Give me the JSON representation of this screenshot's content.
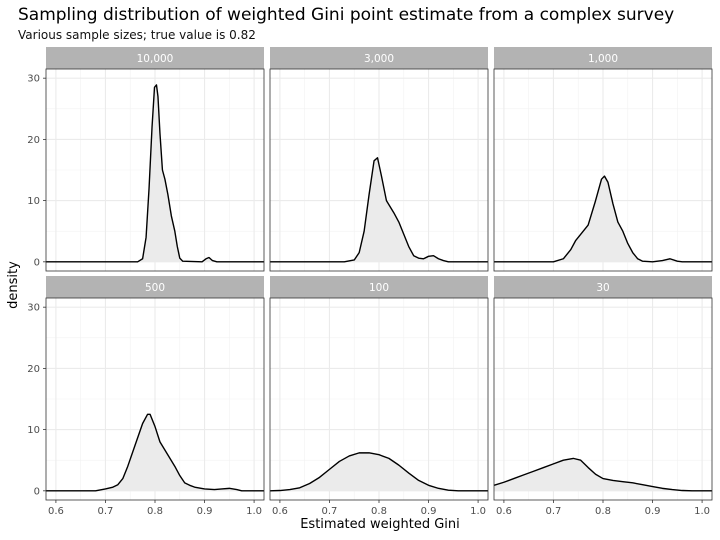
{
  "chart_data": {
    "type": "area",
    "title": "Sampling distribution of weighted Gini point estimate from a complex survey",
    "subtitle": "Various sample sizes; true value is 0.82",
    "xlabel": "Estimated weighted Gini",
    "ylabel": "density",
    "xlim": [
      0.58,
      1.02
    ],
    "ylim": [
      -1.5,
      31.5
    ],
    "x_ticks": [
      0.6,
      0.7,
      0.8,
      0.9,
      1.0
    ],
    "x_tick_labels": [
      "0.6",
      "0.7",
      "0.8",
      "0.9",
      "1.0"
    ],
    "y_ticks": [
      0,
      10,
      20,
      30
    ],
    "y_tick_labels": [
      "0",
      "10",
      "20",
      "30"
    ],
    "grid": true,
    "facets": [
      {
        "label": "10,000",
        "points": [
          [
            0.58,
            0
          ],
          [
            0.74,
            0
          ],
          [
            0.765,
            0
          ],
          [
            0.775,
            0.5
          ],
          [
            0.782,
            4
          ],
          [
            0.788,
            12
          ],
          [
            0.794,
            22
          ],
          [
            0.799,
            28.5
          ],
          [
            0.803,
            28.9
          ],
          [
            0.806,
            27
          ],
          [
            0.81,
            21
          ],
          [
            0.815,
            15
          ],
          [
            0.82,
            13.5
          ],
          [
            0.826,
            11
          ],
          [
            0.833,
            7.5
          ],
          [
            0.84,
            5
          ],
          [
            0.845,
            2.5
          ],
          [
            0.85,
            0.6
          ],
          [
            0.856,
            0.1
          ],
          [
            0.895,
            0
          ],
          [
            0.903,
            0.5
          ],
          [
            0.909,
            0.7
          ],
          [
            0.916,
            0.2
          ],
          [
            0.925,
            0
          ],
          [
            1.02,
            0
          ]
        ]
      },
      {
        "label": "3,000",
        "points": [
          [
            0.58,
            0
          ],
          [
            0.73,
            0
          ],
          [
            0.75,
            0.3
          ],
          [
            0.76,
            1.5
          ],
          [
            0.77,
            5
          ],
          [
            0.78,
            11
          ],
          [
            0.79,
            16.5
          ],
          [
            0.797,
            17
          ],
          [
            0.805,
            14
          ],
          [
            0.815,
            10
          ],
          [
            0.83,
            8
          ],
          [
            0.84,
            6.5
          ],
          [
            0.85,
            4.5
          ],
          [
            0.86,
            2.5
          ],
          [
            0.87,
            1
          ],
          [
            0.88,
            0.6
          ],
          [
            0.89,
            0.5
          ],
          [
            0.9,
            0.9
          ],
          [
            0.91,
            1
          ],
          [
            0.92,
            0.5
          ],
          [
            0.93,
            0.2
          ],
          [
            0.94,
            0
          ],
          [
            1.02,
            0
          ]
        ]
      },
      {
        "label": "1,000",
        "points": [
          [
            0.58,
            0
          ],
          [
            0.7,
            0
          ],
          [
            0.72,
            0.5
          ],
          [
            0.735,
            2
          ],
          [
            0.745,
            3.5
          ],
          [
            0.755,
            4.5
          ],
          [
            0.77,
            6
          ],
          [
            0.785,
            10
          ],
          [
            0.797,
            13.5
          ],
          [
            0.803,
            14
          ],
          [
            0.81,
            13
          ],
          [
            0.82,
            9.5
          ],
          [
            0.83,
            6.5
          ],
          [
            0.84,
            5
          ],
          [
            0.85,
            3
          ],
          [
            0.86,
            1.5
          ],
          [
            0.87,
            0.5
          ],
          [
            0.88,
            0.1
          ],
          [
            0.9,
            0
          ],
          [
            0.92,
            0.2
          ],
          [
            0.935,
            0.5
          ],
          [
            0.95,
            0.1
          ],
          [
            0.96,
            0
          ],
          [
            1.02,
            0
          ]
        ]
      },
      {
        "label": "500",
        "points": [
          [
            0.58,
            0
          ],
          [
            0.68,
            0
          ],
          [
            0.7,
            0.3
          ],
          [
            0.715,
            0.6
          ],
          [
            0.725,
            1
          ],
          [
            0.735,
            2
          ],
          [
            0.745,
            4
          ],
          [
            0.76,
            7.5
          ],
          [
            0.775,
            11
          ],
          [
            0.785,
            12.5
          ],
          [
            0.79,
            12.5
          ],
          [
            0.8,
            10.5
          ],
          [
            0.81,
            8
          ],
          [
            0.825,
            6
          ],
          [
            0.84,
            4
          ],
          [
            0.85,
            2.5
          ],
          [
            0.86,
            1.3
          ],
          [
            0.87,
            0.9
          ],
          [
            0.88,
            0.6
          ],
          [
            0.9,
            0.3
          ],
          [
            0.92,
            0.2
          ],
          [
            0.935,
            0.3
          ],
          [
            0.95,
            0.4
          ],
          [
            0.965,
            0.2
          ],
          [
            0.975,
            0
          ],
          [
            1.02,
            0
          ]
        ]
      },
      {
        "label": "100",
        "points": [
          [
            0.58,
            0
          ],
          [
            0.6,
            0.05
          ],
          [
            0.62,
            0.2
          ],
          [
            0.64,
            0.5
          ],
          [
            0.66,
            1.2
          ],
          [
            0.68,
            2.2
          ],
          [
            0.7,
            3.5
          ],
          [
            0.72,
            4.8
          ],
          [
            0.74,
            5.7
          ],
          [
            0.76,
            6.2
          ],
          [
            0.78,
            6.2
          ],
          [
            0.8,
            5.9
          ],
          [
            0.82,
            5.3
          ],
          [
            0.84,
            4.2
          ],
          [
            0.86,
            2.9
          ],
          [
            0.88,
            1.7
          ],
          [
            0.9,
            0.9
          ],
          [
            0.92,
            0.4
          ],
          [
            0.94,
            0.1
          ],
          [
            0.96,
            0
          ],
          [
            1.02,
            0
          ]
        ]
      },
      {
        "label": "30",
        "points": [
          [
            0.58,
            0.9
          ],
          [
            0.6,
            1.4
          ],
          [
            0.62,
            2
          ],
          [
            0.64,
            2.6
          ],
          [
            0.66,
            3.2
          ],
          [
            0.68,
            3.8
          ],
          [
            0.7,
            4.4
          ],
          [
            0.72,
            5
          ],
          [
            0.74,
            5.3
          ],
          [
            0.755,
            5
          ],
          [
            0.77,
            3.8
          ],
          [
            0.785,
            2.7
          ],
          [
            0.8,
            2
          ],
          [
            0.82,
            1.7
          ],
          [
            0.84,
            1.5
          ],
          [
            0.86,
            1.3
          ],
          [
            0.88,
            1
          ],
          [
            0.9,
            0.7
          ],
          [
            0.92,
            0.4
          ],
          [
            0.94,
            0.2
          ],
          [
            0.96,
            0.05
          ],
          [
            0.98,
            0
          ],
          [
            1.02,
            0
          ]
        ]
      }
    ]
  }
}
